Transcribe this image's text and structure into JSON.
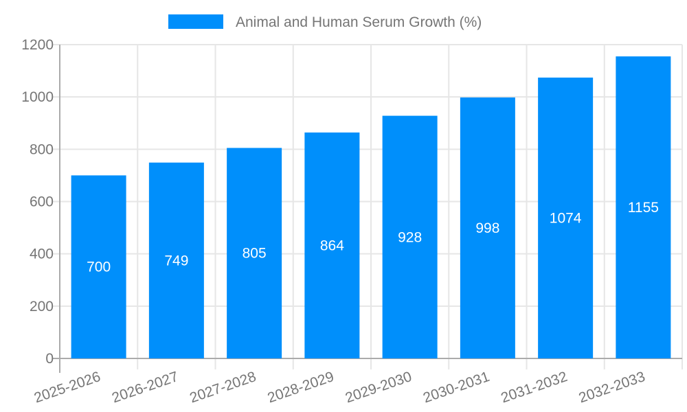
{
  "chart_data": {
    "type": "bar",
    "title": "",
    "xlabel": "",
    "ylabel": "",
    "legend": {
      "position": "top",
      "label": "Animal and Human Serum Growth (%)"
    },
    "categories": [
      "2025-2026",
      "2026-2027",
      "2027-2028",
      "2028-2029",
      "2029-2030",
      "2030-2031",
      "2031-2032",
      "2032-2033"
    ],
    "values": [
      700,
      749,
      805,
      864,
      928,
      998,
      1074,
      1155
    ],
    "ylim": [
      0,
      1200
    ],
    "yticks": [
      0,
      200,
      400,
      600,
      800,
      1000,
      1200
    ],
    "grid": true,
    "bar_value_labels": [
      "700",
      "749",
      "805",
      "864",
      "928",
      "998",
      "1074",
      "1155"
    ],
    "colors": {
      "bar": "#008FFB",
      "bar_label_text": "#ffffff",
      "axis_text": "#757575",
      "gridline": "#e6e6e6",
      "axis_line": "#ababab",
      "background": "#ffffff"
    }
  }
}
